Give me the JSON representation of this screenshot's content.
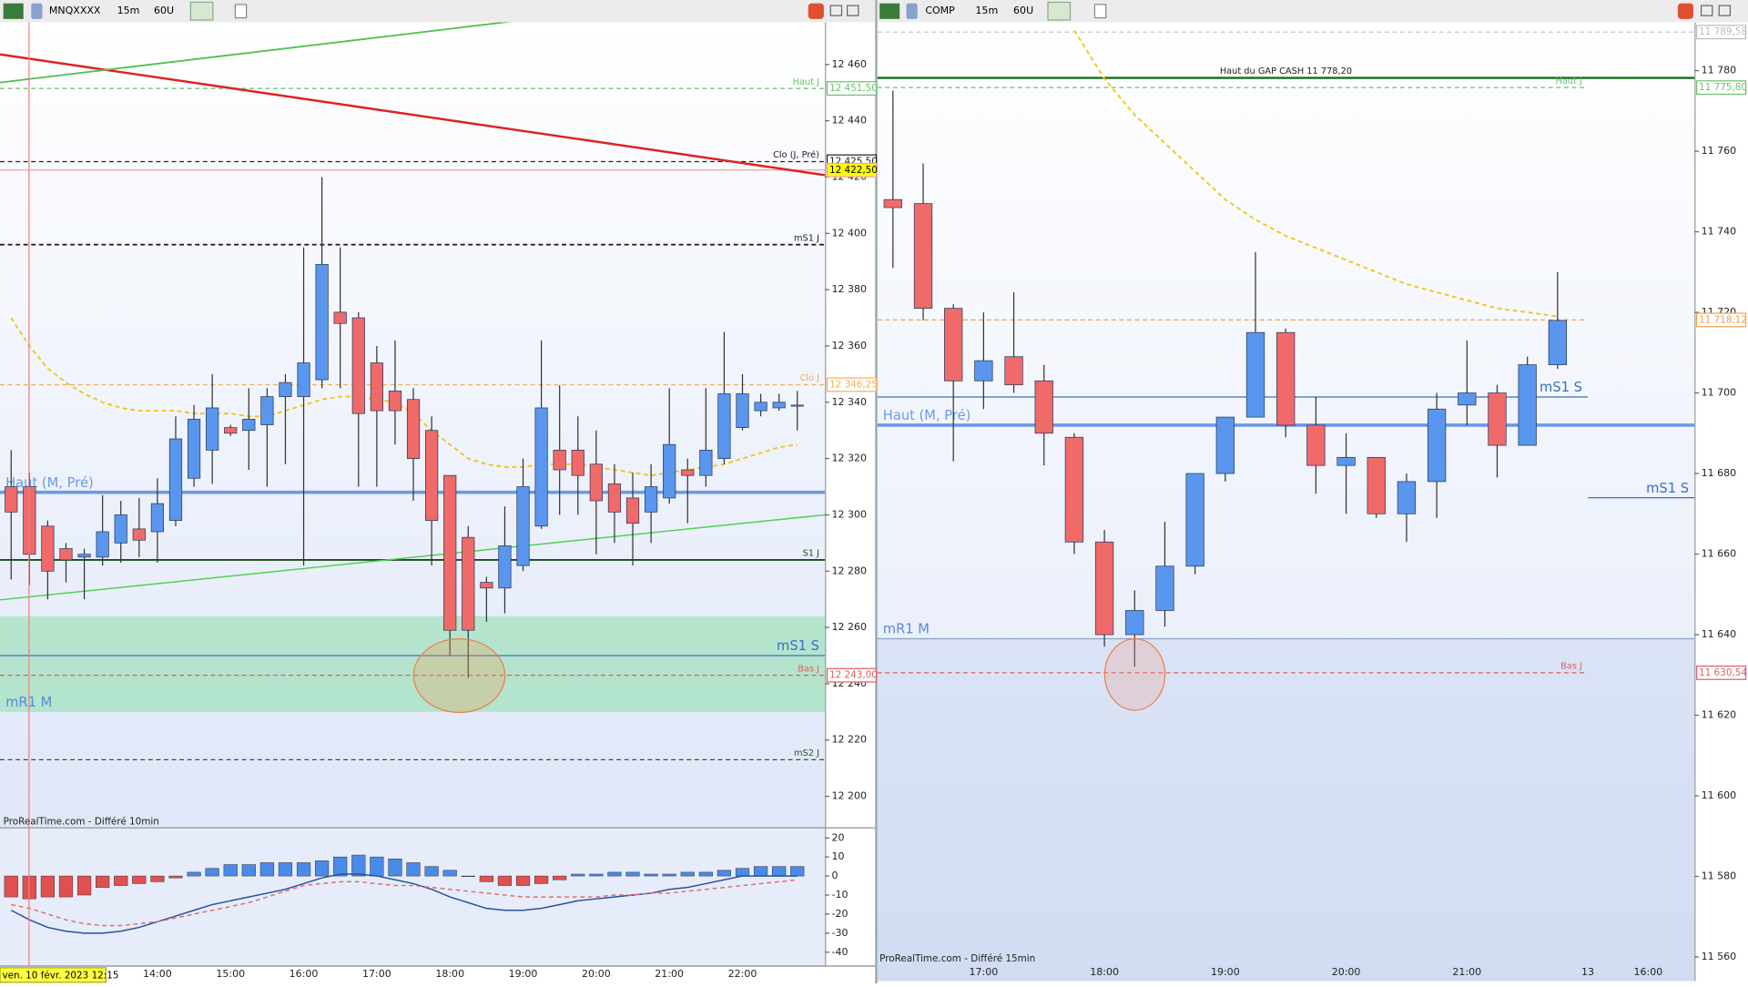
{
  "toolbars": [
    {
      "symbol": "MNQXXXX",
      "timeframe": "15m",
      "units": "60U"
    },
    {
      "symbol": "COMP",
      "timeframe": "15m",
      "units": "60U"
    }
  ],
  "footers": [
    "ProRealTime.com - Différé 10min",
    "ProRealTime.com - Différé 15min"
  ],
  "cursor_date": "ven. 10 févr. 2023 12:15",
  "chart_data": [
    {
      "type": "candlestick",
      "categories": [
        null,
        null,
        null,
        null,
        null,
        null,
        null,
        null,
        "14:00",
        null,
        null,
        null,
        "15:00",
        null,
        null,
        null,
        "16:00",
        null,
        null,
        null,
        "17:00",
        null,
        null,
        null,
        "18:00",
        null,
        null,
        null,
        "19:00",
        null,
        null,
        null,
        "20:00",
        null,
        null,
        null,
        "21:00",
        null,
        null,
        null,
        "22:00",
        null,
        null,
        null
      ],
      "open": [
        12310,
        12310,
        12296,
        12288,
        12285,
        12285,
        12290,
        12295,
        12294,
        12298,
        12313,
        12323,
        12331,
        12330,
        12332,
        12342,
        12342,
        12348,
        12372,
        12370,
        12354,
        12344,
        12341,
        12330,
        12314,
        12292,
        12276,
        12274,
        12282,
        12296,
        12323,
        12323,
        12318,
        12311,
        12306,
        12301,
        12306,
        12316,
        12314,
        12320,
        12331,
        12337,
        12338,
        12339
      ],
      "high": [
        12323,
        12315,
        12298,
        12290,
        12288,
        12307,
        12305,
        12306,
        12313,
        12335,
        12339,
        12350,
        12332,
        12345,
        12345,
        12350,
        12395,
        12420,
        12395,
        12372,
        12360,
        12362,
        12345,
        12335,
        12314,
        12296,
        12278,
        12303,
        12320,
        12362,
        12346,
        12335,
        12330,
        12318,
        12315,
        12318,
        12345,
        12320,
        12345,
        12365,
        12350,
        12343,
        12343,
        12344
      ],
      "low": [
        12277,
        12275,
        12270,
        12276,
        12270,
        12282,
        12283,
        12285,
        12283,
        12296,
        12310,
        12311,
        12328,
        12316,
        12310,
        12318,
        12282,
        12345,
        12345,
        12310,
        12310,
        12325,
        12305,
        12282,
        12250,
        12242,
        12262,
        12265,
        12280,
        12295,
        12300,
        12300,
        12286,
        12290,
        12282,
        12290,
        12304,
        12297,
        12310,
        12318,
        12330,
        12335,
        12337,
        12330
      ],
      "close": [
        12301,
        12286,
        12280,
        12284,
        12286,
        12294,
        12300,
        12291,
        12304,
        12327,
        12334,
        12338,
        12329,
        12334,
        12342,
        12347,
        12354,
        12389,
        12368,
        12336,
        12337,
        12337,
        12320,
        12298,
        12259,
        12259,
        12274,
        12289,
        12310,
        12338,
        12316,
        12314,
        12305,
        12301,
        12297,
        12310,
        12325,
        12314,
        12323,
        12343,
        12343,
        12340,
        12340,
        12339
      ],
      "up_color": "#5a96ee",
      "down_color": "#f06a6a",
      "border_color": "#2a3a5a",
      "ma": {
        "color": "#f0c820",
        "style": "dashed",
        "values": [
          12370,
          12360,
          12352,
          12347,
          12343,
          12340,
          12338,
          12337,
          12337,
          12337,
          12336,
          12336,
          12336,
          12335,
          12335,
          12337,
          12339,
          12341,
          12342,
          12342,
          12341,
          12340,
          12336,
          12330,
          12325,
          12320,
          12318,
          12317,
          12317,
          12318,
          12318,
          12318,
          12317,
          12316,
          12315,
          12314,
          12315,
          12316,
          12317,
          12318,
          12320,
          12322,
          12324,
          12325
        ]
      },
      "ylim": [
        12189,
        12475
      ],
      "yticks": [
        {
          "value": 12200,
          "label": "12 200"
        },
        {
          "value": 12220,
          "label": "12 220"
        },
        {
          "value": 12240,
          "label": "12 240"
        },
        {
          "value": 12260,
          "label": "12 260"
        },
        {
          "value": 12280,
          "label": "12 280"
        },
        {
          "value": 12300,
          "label": "12 300"
        },
        {
          "value": 12320,
          "label": "12 320"
        },
        {
          "value": 12340,
          "label": "12 340"
        },
        {
          "value": 12360,
          "label": "12 360"
        },
        {
          "value": 12380,
          "label": "12 380"
        },
        {
          "value": 12400,
          "label": "12 400"
        },
        {
          "value": 12420,
          "label": "12 420"
        },
        {
          "value": 12440,
          "label": "12 440"
        },
        {
          "value": 12460,
          "label": "12 460"
        }
      ],
      "zones": [
        {
          "from": 12230,
          "to": 12264,
          "label": "mR1 M",
          "color": "rgba(120,220,150,0.45)",
          "label_color": "#5a8ad8"
        }
      ],
      "trendlines": [
        {
          "start": 12463.6,
          "end": 12420.7,
          "color": "#e02020",
          "width": 2
        },
        {
          "start": 12453.6,
          "end": 12488.6,
          "color": "#50c050",
          "width": 1.5
        },
        {
          "start": 12269.8,
          "end": 12300,
          "color": "#50d050",
          "width": 1.2
        }
      ],
      "levels": [
        {
          "value": 12451.5,
          "label": "Haut J",
          "price_label": "12 451,50",
          "color": "#6cc06c",
          "style": "dashed",
          "label_side": "right"
        },
        {
          "value": 12425.5,
          "label": "Clo (J, Pré)",
          "price_label": "12 425,50",
          "color": "#222222",
          "style": "dashed",
          "label_side": "right"
        },
        {
          "value": 12422.5,
          "price_label": "12 422,50",
          "color": "#f0a0a8",
          "style": "solid",
          "tag_color": "#ffff00"
        },
        {
          "value": 12396,
          "label": "mS1 J",
          "color": "#222222",
          "style": "dashed",
          "width": 1.5,
          "label_side": "right"
        },
        {
          "value": 12346.25,
          "label": "Clo J",
          "price_label": "12 346,25",
          "color": "#f0b060",
          "style": "dashed",
          "label_side": "right"
        },
        {
          "value": 12308,
          "label": "Haut (M, Pré)",
          "color": "#6a9ae8",
          "style": "solid",
          "width": 3,
          "label_side": "left",
          "label_size": "large"
        },
        {
          "value": 12284,
          "label": "S1 J",
          "color": "#1a4a1a",
          "style": "solid",
          "width": 1.5,
          "label_side": "right"
        },
        {
          "value": 12250,
          "label": "mS1 S",
          "color": "#3a70c0",
          "style": "solid",
          "label_side": "right",
          "label_size": "large"
        },
        {
          "value": 12243,
          "label": "Bas J",
          "price_label": "12 243,00",
          "color": "#e06060",
          "style": "dashed",
          "label_side": "right"
        },
        {
          "value": 12213,
          "label": "mS2 J",
          "color": "#2a5a2a",
          "style": "dashed",
          "label_side": "right"
        }
      ]
    },
    {
      "type": "macd",
      "values": [
        -11,
        -12,
        -11,
        -11,
        -10,
        -6,
        -5,
        -4,
        -3,
        -1,
        2,
        4,
        6,
        6,
        7,
        7,
        7,
        8,
        10,
        11,
        10,
        9,
        7,
        5,
        3,
        0,
        -3,
        -5,
        -5,
        -4,
        -2,
        1,
        1,
        2,
        2,
        1,
        1,
        2,
        2,
        3,
        4,
        5,
        5,
        5
      ],
      "color": "#4a8ae8",
      "negative_color": "#e05050",
      "series": [
        {
          "color": "#2850a0",
          "style": "solid",
          "values": [
            -18,
            -23,
            -27,
            -29,
            -30,
            -30,
            -29,
            -27,
            -24,
            -21,
            -18,
            -15,
            -13,
            -11,
            -9,
            -7,
            -4,
            -1,
            1,
            1,
            0,
            -2,
            -4,
            -7,
            -11,
            -14,
            -17,
            -18,
            -18,
            -17,
            -15,
            -13,
            -12,
            -11,
            -10,
            -9,
            -7,
            -6,
            -4,
            -2,
            0,
            0,
            0,
            0
          ]
        },
        {
          "color": "#e07070",
          "style": "dashed",
          "values": [
            -15,
            -17,
            -20,
            -23,
            -25,
            -26,
            -26,
            -25,
            -24,
            -22,
            -20,
            -18,
            -16,
            -14,
            -11,
            -8,
            -5,
            -4,
            -3,
            -3,
            -4,
            -5,
            -5,
            -6,
            -7,
            -8,
            -9,
            -10,
            -11,
            -11,
            -11,
            -11,
            -11,
            -10,
            -10,
            -9,
            -9,
            -8,
            -7,
            -6,
            -5,
            -4,
            -3,
            -2
          ]
        }
      ],
      "ylim": [
        -47,
        25
      ],
      "yticks": [
        20,
        10,
        0,
        -10,
        -20,
        -30,
        -40
      ]
    },
    {
      "type": "candlestick",
      "categories": [
        null,
        null,
        null,
        "17:00",
        null,
        null,
        null,
        "18:00",
        null,
        null,
        null,
        "19:00",
        null,
        null,
        null,
        "20:00",
        null,
        null,
        null,
        "21:00",
        null,
        null,
        null,
        "13",
        null,
        "16:00"
      ],
      "open": [
        11748,
        11747,
        11721,
        11703,
        11709,
        11703,
        11689,
        11663,
        11640,
        11646,
        11657,
        11680,
        11694,
        11715,
        11692,
        11682,
        11684,
        11670,
        11678,
        11697,
        11700,
        11687,
        11707,
        null,
        null,
        null
      ],
      "high": [
        11775,
        11757,
        11722,
        11720,
        11725,
        11707,
        11690,
        11666,
        11651,
        11668,
        11680,
        11694,
        11735,
        11716,
        11699,
        11690,
        11684,
        11680,
        11700,
        11713,
        11702,
        11709,
        11730,
        null,
        null,
        null
      ],
      "low": [
        11731,
        11718,
        11683,
        11696,
        11700,
        11682,
        11660,
        11637,
        11632,
        11642,
        11655,
        11678,
        11694,
        11689,
        11675,
        11670,
        11669,
        11663,
        11669,
        11692,
        11679,
        11687,
        11706,
        null,
        null,
        null
      ],
      "close": [
        11746,
        11721,
        11703,
        11708,
        11702,
        11690,
        11663,
        11640,
        11646,
        11657,
        11680,
        11694,
        11715,
        11692,
        11682,
        11684,
        11670,
        11678,
        11696,
        11700,
        11687,
        11707,
        11718,
        null,
        null,
        null
      ],
      "up_color": "#5a96ee",
      "down_color": "#f06a6a",
      "border_color": "#2a3a5a",
      "ma": {
        "color": "#f0c820",
        "style": "dashed",
        "values": [
          null,
          null,
          null,
          null,
          null,
          null,
          11790,
          11778,
          11769,
          11762,
          11755,
          11748,
          11743,
          11739,
          11736,
          11733,
          11730,
          11727,
          11725,
          11723,
          11721,
          11720,
          11719,
          null,
          null,
          null
        ]
      },
      "ylim": [
        11554,
        11792
      ],
      "yticks": [
        {
          "value": 11560,
          "label": "11 560"
        },
        {
          "value": 11580,
          "label": "11 580"
        },
        {
          "value": 11600,
          "label": "11 600"
        },
        {
          "value": 11620,
          "label": "11 620"
        },
        {
          "value": 11640,
          "label": "11 640"
        },
        {
          "value": 11660,
          "label": "11 660"
        },
        {
          "value": 11680,
          "label": "11 680"
        },
        {
          "value": 11700,
          "label": "11 700"
        },
        {
          "value": 11720,
          "label": "11 720"
        },
        {
          "value": 11740,
          "label": "11 740"
        },
        {
          "value": 11760,
          "label": "11 760"
        },
        {
          "value": 11780,
          "label": "11 780"
        }
      ],
      "zones": [
        {
          "from": 11554,
          "to": 11639,
          "color": "rgba(150,170,220,0.18)"
        }
      ],
      "levels": [
        {
          "value": 11789.58,
          "price_label": "11 789,58",
          "color": "#bbbbbb",
          "style": "dashed"
        },
        {
          "value": 11778.2,
          "label": "Haut du GAP CASH 11 778,20",
          "color": "#1a6b1a",
          "style": "solid",
          "width": 2,
          "label_side": "center",
          "label_color": "#222222"
        },
        {
          "value": 11775.8,
          "label": "Haut J",
          "price_label": "11 775,80",
          "color": "#6cc06c",
          "style": "dashed",
          "label_side": "right",
          "to": 23
        },
        {
          "value": 11718.12,
          "price_label": "11 718,12",
          "color": "#f0a050",
          "style": "dashed",
          "to": 23
        },
        {
          "value": 11699,
          "label": "mS1 S",
          "color": "#3a70c0",
          "style": "solid",
          "label_side": "right",
          "label_size": "large",
          "to": 23
        },
        {
          "value": 11692,
          "label": "Haut (M, Pré)",
          "color": "#6a9ae8",
          "style": "solid",
          "width": 3,
          "label_side": "left",
          "label_size": "large"
        },
        {
          "value": 11674,
          "label": "mS1 S",
          "color": "#3a70c0",
          "style": "solid",
          "label_side": "right",
          "label_size": "large",
          "from": 23
        },
        {
          "value": 11639,
          "label": "mR1 M",
          "color": "#8aa0c8",
          "style": "solid",
          "label_side": "left",
          "label_size": "large",
          "label_color": "#5a8ad8"
        },
        {
          "value": 11630.54,
          "label": "Bas J",
          "price_label": "11 630,54",
          "color": "#e06060",
          "style": "dashed",
          "label_side": "right",
          "to": 23
        }
      ]
    }
  ]
}
